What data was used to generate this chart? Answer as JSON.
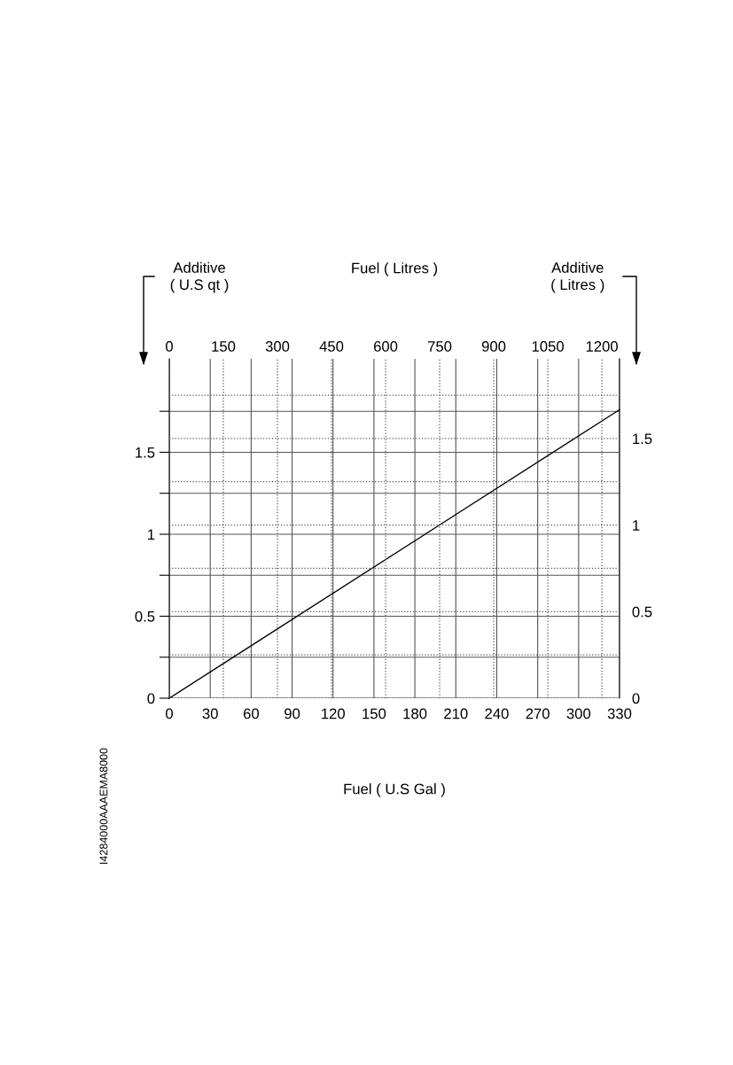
{
  "chart_data": {
    "type": "line",
    "x": [
      0,
      330
    ],
    "series": [
      {
        "color": "#000000",
        "values": [
          0,
          1.76
        ]
      }
    ],
    "xlabel": "Fuel ( U.S Gal )",
    "x2label": "Fuel ( Litres )",
    "ylabel": "Additive\n( U.S qt )",
    "y2label": "Additive\n( Litres )",
    "xlim": [
      0,
      330
    ],
    "xticks": [
      0,
      30,
      60,
      90,
      120,
      150,
      180,
      210,
      240,
      270,
      300,
      330
    ],
    "x2lim": [
      0,
      1249
    ],
    "x2ticks": [
      0,
      150,
      300,
      450,
      600,
      750,
      900,
      1050,
      1200
    ],
    "ylim": [
      0,
      2.07
    ],
    "yticks": [
      0,
      {
        "value": 0.25,
        "label": null
      },
      0.5,
      {
        "value": 0.75,
        "label": null
      },
      1,
      {
        "value": 1.25,
        "label": null
      },
      1.5,
      {
        "value": 1.75,
        "label": null
      }
    ],
    "y2lim": [
      0,
      1.96
    ],
    "y2ticks": [
      0,
      {
        "value": 0.25,
        "label": null
      },
      0.5,
      {
        "value": 0.75,
        "label": null
      },
      1,
      {
        "value": 1.25,
        "label": null
      },
      1.5,
      {
        "value": 1.75,
        "label": null
      }
    ],
    "grid": true,
    "marker": "none",
    "line_style": "solid",
    "annotations": [
      "I4284000AAAEMA8000"
    ]
  }
}
